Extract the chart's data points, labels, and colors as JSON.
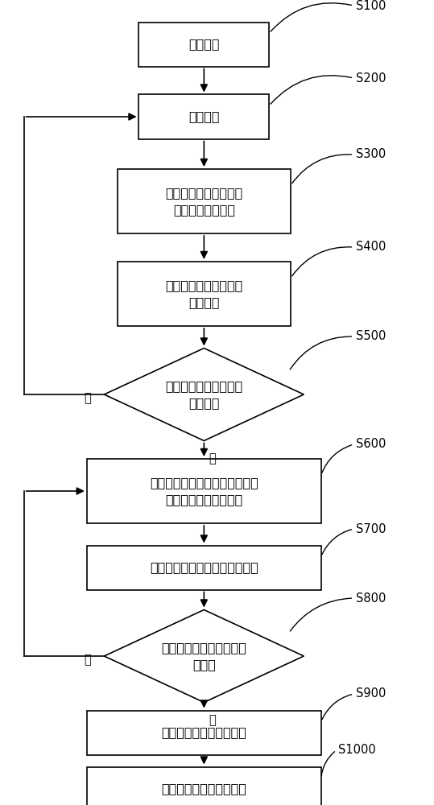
{
  "bg_color": "#ffffff",
  "nodes": [
    {
      "id": "s100",
      "type": "rect",
      "label": "启动侦听",
      "tag": "S100"
    },
    {
      "id": "s200",
      "type": "rect",
      "label": "接收数据",
      "tag": "S200"
    },
    {
      "id": "s300",
      "type": "rect",
      "label": "将接收到的数据与已知\n序列进行滑动相关",
      "tag": "S300"
    },
    {
      "id": "s400",
      "type": "rect",
      "label": "对滑动相关结果进行峰\n均比计算",
      "tag": "S400"
    },
    {
      "id": "s500",
      "type": "diamond",
      "label": "判断峰均比是否大于第\n一门限值",
      "tag": "S500"
    },
    {
      "id": "s600",
      "type": "rect",
      "label": "继续接收数据，将接收的数据与\n已知序列进行滑动相关",
      "tag": "S600"
    },
    {
      "id": "s700",
      "type": "rect",
      "label": "对滑动相关结果进行峰均比计算",
      "tag": "S700"
    },
    {
      "id": "s800",
      "type": "diamond",
      "label": "判断峰均比是否大于第二\n门限值",
      "tag": "S800"
    },
    {
      "id": "s900",
      "type": "rect",
      "label": "计算定时偏差并进行调整",
      "tag": "S900"
    },
    {
      "id": "s1000",
      "type": "rect",
      "label": "进入长前导数据接收状态",
      "tag": "S1000"
    }
  ],
  "yes_label": "是",
  "no_label": "否"
}
